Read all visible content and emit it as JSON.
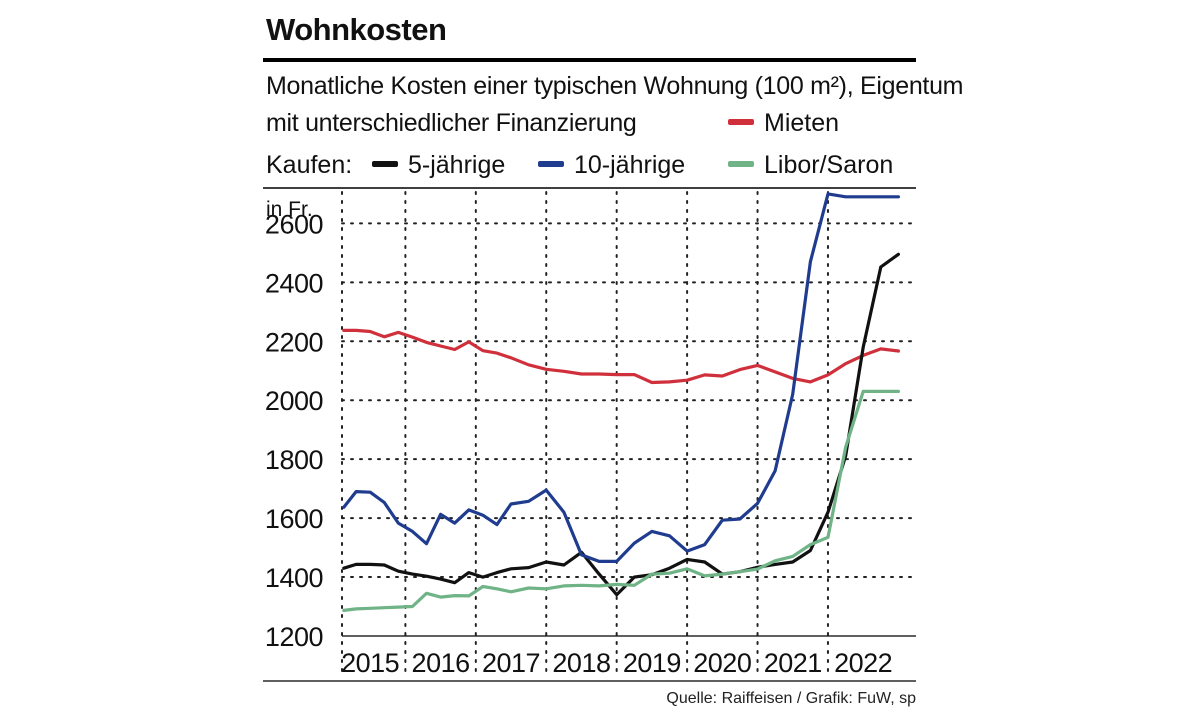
{
  "title": "Wohnkosten",
  "subtitle_line1": "Monatliche Kosten einer typischen Wohnung (100 m²), Eigentum",
  "subtitle_line2": "mit unterschiedlicher Finanzierung",
  "kaufen_label": "Kaufen:",
  "source": "Quelle: Raiffeisen / Grafik: FuW, sp",
  "colors": {
    "mieten": "#d0303b",
    "fuenf": "#111111",
    "zehn": "#1f3c8f",
    "libor": "#6fb386",
    "grid": "#222222"
  },
  "chart_data": {
    "type": "line",
    "title": "Wohnkosten",
    "ylabel": "in Fr.",
    "xlabel": "",
    "ylim": [
      1200,
      2720
    ],
    "xlim": [
      2014.6,
      2022.75
    ],
    "y_ticks": [
      1200,
      1400,
      1600,
      1800,
      2000,
      2200,
      2400,
      2600
    ],
    "x_tick_labels": [
      "2015",
      "2016",
      "2017",
      "2018",
      "2019",
      "2020",
      "2021",
      "2022"
    ],
    "x_tick_positions": [
      2015,
      2016,
      2017,
      2018,
      2019,
      2020,
      2021,
      2022
    ],
    "grid": "dotted",
    "series": [
      {
        "name": "Mieten",
        "color_key": "mieten",
        "legend_group": "mieten",
        "x": [
          2014.625,
          2014.8,
          2015.0,
          2015.2,
          2015.4,
          2015.6,
          2015.8,
          2016.0,
          2016.2,
          2016.4,
          2016.6,
          2016.8,
          2017.0,
          2017.25,
          2017.5,
          2017.75,
          2018.0,
          2018.25,
          2018.5,
          2018.75,
          2019.0,
          2019.25,
          2019.5,
          2019.75,
          2020.0,
          2020.25,
          2020.5,
          2020.75,
          2021.0,
          2021.25,
          2021.5,
          2021.75,
          2022.0,
          2022.25,
          2022.5
        ],
        "values": [
          2237,
          2237,
          2233,
          2215,
          2230,
          2214,
          2196,
          2184,
          2172,
          2198,
          2168,
          2160,
          2144,
          2120,
          2105,
          2098,
          2089,
          2089,
          2087,
          2087,
          2060,
          2062,
          2068,
          2086,
          2082,
          2104,
          2118,
          2096,
          2074,
          2062,
          2086,
          2124,
          2152,
          2174,
          2167
        ]
      },
      {
        "name": "5-jährige",
        "color_key": "fuenf",
        "legend_group": "kaufen",
        "x": [
          2014.625,
          2014.8,
          2015.0,
          2015.2,
          2015.4,
          2015.6,
          2015.8,
          2016.0,
          2016.2,
          2016.4,
          2016.6,
          2016.8,
          2017.0,
          2017.25,
          2017.5,
          2017.75,
          2018.0,
          2018.25,
          2018.5,
          2018.75,
          2019.0,
          2019.25,
          2019.5,
          2019.75,
          2020.0,
          2020.25,
          2020.5,
          2020.75,
          2021.0,
          2021.25,
          2021.5,
          2021.75,
          2022.0,
          2022.25,
          2022.5
        ],
        "values": [
          1430,
          1443,
          1443,
          1441,
          1420,
          1410,
          1403,
          1393,
          1381,
          1415,
          1400,
          1415,
          1428,
          1432,
          1451,
          1441,
          1484,
          1410,
          1340,
          1400,
          1408,
          1430,
          1460,
          1451,
          1410,
          1418,
          1433,
          1443,
          1451,
          1490,
          1620,
          1810,
          2180,
          2452,
          2495
        ]
      },
      {
        "name": "10-jährige",
        "color_key": "zehn",
        "legend_group": "kaufen",
        "x": [
          2014.625,
          2014.8,
          2015.0,
          2015.2,
          2015.4,
          2015.6,
          2015.8,
          2016.0,
          2016.2,
          2016.4,
          2016.6,
          2016.8,
          2017.0,
          2017.25,
          2017.5,
          2017.75,
          2018.0,
          2018.25,
          2018.5,
          2018.75,
          2019.0,
          2019.25,
          2019.5,
          2019.75,
          2020.0,
          2020.25,
          2020.5,
          2020.75,
          2021.0,
          2021.25,
          2021.5,
          2021.75,
          2022.0,
          2022.25,
          2022.5
        ],
        "values": [
          1637,
          1690,
          1688,
          1653,
          1583,
          1555,
          1513,
          1613,
          1583,
          1628,
          1610,
          1578,
          1648,
          1657,
          1695,
          1620,
          1475,
          1453,
          1453,
          1515,
          1555,
          1540,
          1488,
          1510,
          1593,
          1597,
          1650,
          1760,
          2020,
          2470,
          2700,
          2690,
          2690,
          2690,
          2690
        ]
      },
      {
        "name": "Libor/Saron",
        "color_key": "libor",
        "legend_group": "kaufen",
        "x": [
          2014.625,
          2014.8,
          2015.0,
          2015.2,
          2015.4,
          2015.6,
          2015.8,
          2016.0,
          2016.2,
          2016.4,
          2016.6,
          2016.8,
          2017.0,
          2017.25,
          2017.5,
          2017.75,
          2018.0,
          2018.25,
          2018.5,
          2018.75,
          2019.0,
          2019.25,
          2019.5,
          2019.75,
          2020.0,
          2020.25,
          2020.5,
          2020.75,
          2021.0,
          2021.25,
          2021.5,
          2021.75,
          2022.0,
          2022.25,
          2022.5
        ],
        "values": [
          1287,
          1292,
          1294,
          1296,
          1298,
          1300,
          1345,
          1332,
          1337,
          1336,
          1368,
          1360,
          1350,
          1363,
          1360,
          1370,
          1372,
          1370,
          1375,
          1372,
          1410,
          1413,
          1428,
          1404,
          1410,
          1418,
          1427,
          1455,
          1470,
          1510,
          1535,
          1840,
          2030,
          2030,
          2030
        ]
      }
    ]
  }
}
